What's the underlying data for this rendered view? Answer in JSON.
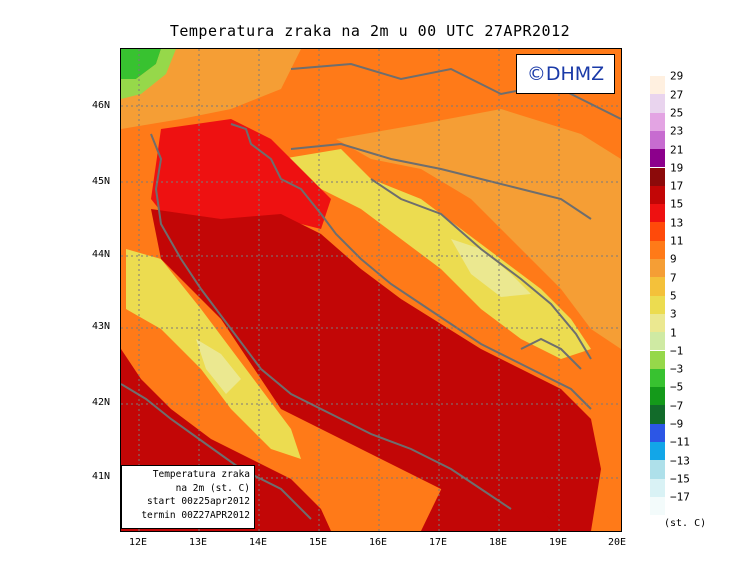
{
  "title": "Temperatura zraka na 2m u 00 UTC 27APR2012",
  "copyright": "©DHMZ",
  "info_box": {
    "line1": "Temperatura zraka",
    "line2": "na 2m (st. C)",
    "line3": "start 00z25apr2012",
    "line4": "termin 00Z27APR2012"
  },
  "latitude_labels": [
    "46N",
    "45N",
    "44N",
    "43N",
    "42N",
    "41N"
  ],
  "longitude_labels": [
    "12E",
    "13E",
    "14E",
    "15E",
    "16E",
    "17E",
    "18E",
    "19E",
    "20E"
  ],
  "legend": {
    "unit": "(st. C)",
    "labels": [
      "29",
      "27",
      "25",
      "23",
      "21",
      "19",
      "17",
      "15",
      "13",
      "11",
      "9",
      "7",
      "5",
      "3",
      "1",
      "−1",
      "−3",
      "−5",
      "−7",
      "−9",
      "−11",
      "−13",
      "−15",
      "−17"
    ],
    "colors": [
      "#fff0e0",
      "#e9d4ee",
      "#e3a4e3",
      "#c76cd0",
      "#8c008c",
      "#8c0a0a",
      "#c20606",
      "#ee1111",
      "#ff4a0a",
      "#ff7a18",
      "#f59e35",
      "#f4c13a",
      "#ecdc50",
      "#ebe890",
      "#cfeaa3",
      "#96d84a",
      "#38c230",
      "#149a1a",
      "#126b2a",
      "#2c56e6",
      "#12a6e8",
      "#aee0ea",
      "#d9f2f5",
      "#f3fbfb"
    ]
  },
  "colors": {
    "sea": "#c20606",
    "warm_sea": "#ee1111",
    "coast_land": "#ff7a18",
    "hinterland": "#f59e35",
    "mountain": "#ecdc50",
    "cold_peak": "#38c230",
    "borders": "#6e6e6e"
  }
}
